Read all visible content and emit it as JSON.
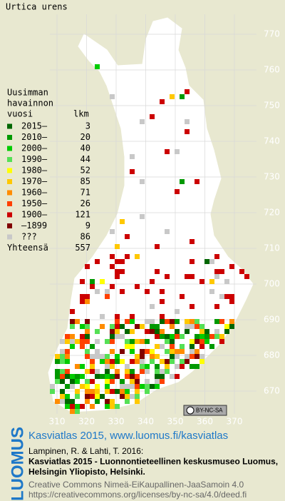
{
  "title": "Urtica urens",
  "legend": {
    "heading": [
      "Uusimman",
      "havainnon",
      "vuosi"
    ],
    "count_heading": "lkm",
    "items": [
      {
        "label": "2015–",
        "count": 3,
        "color": "#006600"
      },
      {
        "label": "2010–",
        "count": 20,
        "color": "#009900"
      },
      {
        "label": "2000–",
        "count": 40,
        "color": "#00cc00"
      },
      {
        "label": "1990–",
        "count": 44,
        "color": "#55e055"
      },
      {
        "label": "1980–",
        "count": 52,
        "color": "#ffff00"
      },
      {
        "label": "1970–",
        "count": 85,
        "color": "#ffc800"
      },
      {
        "label": "1960–",
        "count": 71,
        "color": "#ff8c00"
      },
      {
        "label": "1950–",
        "count": 26,
        "color": "#ff4000"
      },
      {
        "label": "1900–",
        "count": 121,
        "color": "#cc0000"
      },
      {
        "label": "–1899",
        "count": 9,
        "color": "#800000"
      },
      {
        "label": "???",
        "count": 86,
        "color": "#c8c8c8"
      }
    ],
    "total": {
      "label": "Yhteensä",
      "count": 557
    }
  },
  "axes": {
    "y_labels": [
      770,
      760,
      750,
      740,
      730,
      720,
      710,
      700,
      690,
      680,
      670
    ],
    "x_labels": [
      310,
      320,
      330,
      340,
      350,
      360,
      370
    ]
  },
  "license_badge": "BY-NC-SA",
  "footer": {
    "brand": "LUOMUS",
    "headline": "Kasviatlas 2015, www.luomus.fi/kasviatlas",
    "citation": [
      "Lampinen, R. & Lahti, T. 2016:",
      "Kasviatlas 2015 - Luonnontieteellinen keskusmuseo Luomus,",
      "Helsingin Yliopisto, Helsinki."
    ],
    "license": [
      "Creative Commons Nimeä-EiKaupallinen-JaaSamoin 4.0",
      "https://creativecommons.org/licenses/by-nc-sa/4.0/deed.fi"
    ]
  }
}
